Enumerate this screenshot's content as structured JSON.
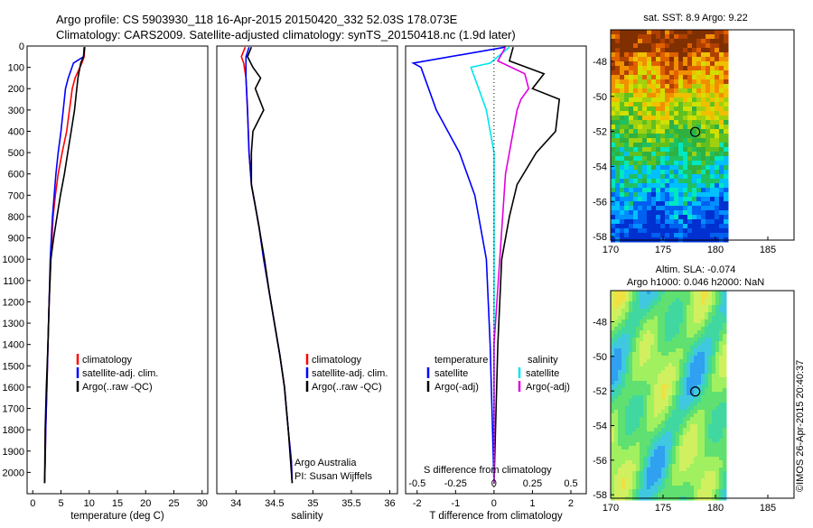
{
  "title_line1": "Argo profile: CS 5903930_118 16-Apr-2015 20150420_332 52.03S 178.073E",
  "title_line2": "Climatology: CARS2009. Satellite-adjusted climatology: synTS_20150418.nc (1.9d later)",
  "timestamp": "©IMOS 26-Apr-2015 20:40:37",
  "colors": {
    "climatology": "#ff0000",
    "satellite": "#0000ff",
    "argo": "#000000",
    "satellite_s": "#00e5ee",
    "argo_s": "#e000e0"
  },
  "chart_data": [
    {
      "type": "line",
      "id": "temperature",
      "xlabel": "temperature (deg C)",
      "ylim": [
        2100,
        0
      ],
      "xlim": [
        -1,
        31
      ],
      "xticks": [
        "0",
        "5",
        "10",
        "15",
        "20",
        "25",
        "30"
      ],
      "yticks": [
        "0",
        "100",
        "200",
        "300",
        "400",
        "500",
        "600",
        "700",
        "800",
        "900",
        "1000",
        "1100",
        "1200",
        "1300",
        "1400",
        "1500",
        "1600",
        "1700",
        "1800",
        "1900",
        "2000"
      ],
      "legend": [
        "climatology",
        "satellite-adj. clim.",
        "Argo(..raw -QC)"
      ],
      "series": [
        {
          "name": "climatology",
          "color": "#ff0000",
          "x": [
            9.2,
            9.1,
            8.7,
            7.5,
            7.0,
            6.5,
            6.0,
            5.2,
            4.5,
            4.0,
            3.6,
            3.2,
            2.9,
            2.7,
            2.5,
            2.3,
            2.2,
            2.1
          ],
          "y": [
            5,
            50,
            80,
            150,
            200,
            300,
            400,
            500,
            600,
            700,
            800,
            1000,
            1200,
            1400,
            1600,
            1800,
            1950,
            2050
          ]
        },
        {
          "name": "satellite-adj. clim.",
          "color": "#0000ff",
          "x": [
            9.1,
            9.0,
            7.2,
            6.3,
            5.8,
            5.4,
            5.0,
            4.5,
            4.1,
            3.8,
            3.5,
            3.1,
            2.9,
            2.7,
            2.5,
            2.3,
            2.2,
            2.1
          ],
          "y": [
            5,
            50,
            80,
            150,
            200,
            300,
            400,
            500,
            600,
            700,
            800,
            1000,
            1200,
            1400,
            1600,
            1800,
            1950,
            2050
          ]
        },
        {
          "name": "Argo(..raw -QC)",
          "color": "#000000",
          "x": [
            9.2,
            9.0,
            8.5,
            8.0,
            7.8,
            7.4,
            6.8,
            6.2,
            5.6,
            4.9,
            4.3,
            3.7,
            3.2,
            2.9,
            2.7,
            2.4,
            2.2,
            2.1
          ],
          "y": [
            5,
            50,
            80,
            150,
            200,
            300,
            400,
            500,
            600,
            700,
            800,
            900,
            1000,
            1200,
            1400,
            1600,
            1800,
            2050
          ]
        }
      ]
    },
    {
      "type": "line",
      "id": "salinity",
      "xlabel": "salinity",
      "ylim": [
        2100,
        0
      ],
      "xlim": [
        33.75,
        36.1
      ],
      "xticks": [
        "34",
        "34.5",
        "35",
        "35.5",
        "36"
      ],
      "legend": [
        "climatology",
        "satellite-adj. clim.",
        "Argo(..raw -QC)"
      ],
      "annotations": [
        "Argo Australia",
        "PI: Susan Wijffels"
      ],
      "series": [
        {
          "name": "climatology",
          "color": "#ff0000",
          "x": [
            34.12,
            34.07,
            34.1,
            34.13,
            34.15,
            34.17,
            34.2,
            34.25,
            34.3,
            34.36,
            34.43,
            34.5,
            34.57,
            34.63,
            34.68,
            34.72,
            34.73
          ],
          "y": [
            5,
            50,
            80,
            150,
            300,
            500,
            650,
            750,
            850,
            1000,
            1150,
            1300,
            1450,
            1600,
            1800,
            1950,
            2050
          ]
        },
        {
          "name": "satellite-adj. clim.",
          "color": "#0000ff",
          "x": [
            34.17,
            34.13,
            34.13,
            34.13,
            34.15,
            34.17,
            34.2,
            34.25,
            34.3,
            34.36,
            34.43,
            34.5,
            34.57,
            34.63,
            34.68,
            34.72,
            34.73
          ],
          "y": [
            5,
            50,
            80,
            150,
            300,
            500,
            650,
            750,
            850,
            1000,
            1150,
            1300,
            1450,
            1600,
            1800,
            1950,
            2050
          ]
        },
        {
          "name": "Argo(..raw -QC)",
          "color": "#000000",
          "x": [
            34.2,
            34.15,
            34.22,
            34.32,
            34.25,
            34.36,
            34.22,
            34.2,
            34.2,
            34.25,
            34.3,
            34.37,
            34.43,
            34.5,
            34.57,
            34.63,
            34.68,
            34.71,
            34.73
          ],
          "y": [
            5,
            50,
            100,
            150,
            200,
            300,
            400,
            500,
            650,
            750,
            850,
            1000,
            1150,
            1300,
            1450,
            1600,
            1800,
            1950,
            2050
          ]
        }
      ]
    },
    {
      "type": "line",
      "id": "difference",
      "xlabel": "T difference from climatology",
      "xlabel_top": "S difference from climatology",
      "ylim": [
        2100,
        0
      ],
      "xlim": [
        -2.3,
        2.4
      ],
      "xticks": [
        "-2",
        "-1",
        "0",
        "1",
        "2"
      ],
      "sticks": [
        "-0.5",
        "-0.25",
        "0",
        "0.25",
        "0.5"
      ],
      "legend_t_title": "temperature",
      "legend_s_title": "salinity",
      "legend": [
        "satellite",
        "Argo(-adj)",
        "satellite",
        "Argo(-adj)"
      ],
      "series": [
        {
          "name": "satellite",
          "color": "#0000ff",
          "x": [
            0.3,
            -2.1,
            -1.9,
            -1.7,
            -1.5,
            -1.2,
            -0.9,
            -0.7,
            -0.5,
            -0.4,
            -0.2,
            -0.1,
            0
          ],
          "y": [
            5,
            80,
            100,
            200,
            300,
            400,
            500,
            600,
            700,
            800,
            1000,
            1400,
            2050
          ]
        },
        {
          "name": "Argo(-adj)",
          "color": "#000000",
          "x": [
            0.5,
            0.4,
            1.3,
            1.0,
            1.7,
            1.6,
            1.1,
            0.6,
            0.4,
            0.2,
            0.1,
            0
          ],
          "y": [
            5,
            70,
            130,
            200,
            250,
            400,
            500,
            650,
            800,
            1000,
            1400,
            2050
          ]
        },
        {
          "name": "satellite",
          "color": "#00e5ee",
          "x": [
            0.4,
            -0.1,
            -0.6,
            -0.4,
            -0.2,
            0.0,
            0.0,
            0.0
          ],
          "y": [
            5,
            80,
            100,
            200,
            300,
            500,
            1000,
            2050
          ]
        },
        {
          "name": "Argo(-adj)",
          "color": "#e000e0",
          "x": [
            0.3,
            0.1,
            0.8,
            0.9,
            0.7,
            0.6,
            0.3,
            0.0,
            0.0
          ],
          "y": [
            5,
            70,
            130,
            200,
            250,
            300,
            600,
            1400,
            2050
          ]
        }
      ]
    },
    {
      "type": "heatmap",
      "id": "sst-map",
      "title": "sat. SST: 8.9 Argo: 9.22",
      "xticks": [
        "170",
        "175",
        "180",
        "185"
      ],
      "yticks": [
        "-48",
        "-50",
        "-52",
        "-54",
        "-56",
        "-58"
      ]
    },
    {
      "type": "heatmap",
      "id": "sla-map",
      "title_line1": "Altim. SLA: -0.074",
      "title_line2": "Argo h1000: 0.046 h2000: NaN",
      "xticks": [
        "170",
        "175",
        "180",
        "185"
      ],
      "yticks": [
        "-48",
        "-50",
        "-52",
        "-54",
        "-56",
        "-58"
      ]
    }
  ]
}
